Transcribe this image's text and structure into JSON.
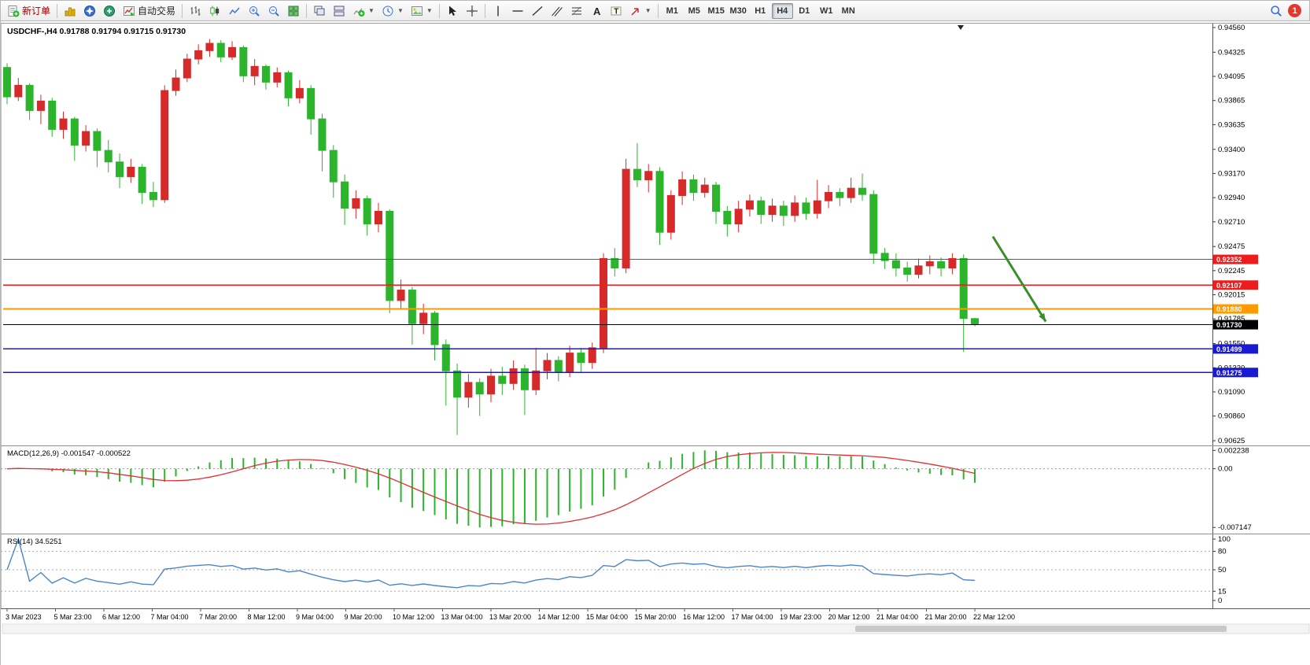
{
  "toolbar": {
    "new_order": "新订单",
    "autotrading": "自动交易",
    "timeframes": [
      "M1",
      "M5",
      "M15",
      "M30",
      "H1",
      "H4",
      "D1",
      "W1",
      "MN"
    ],
    "active_timeframe": "H4",
    "notification_badge": "1",
    "icons": [
      "new-order-icon",
      "market-watch-icon",
      "navigator-icon",
      "terminal-icon",
      "autotrading-icon",
      "bar-chart-icon",
      "candlestick-icon",
      "line-chart-icon",
      "zoom-in-icon",
      "zoom-out-icon",
      "tile-windows-icon",
      "cascade-windows-icon",
      "tile-horizontal-icon",
      "indicators-icon",
      "periods-icon",
      "templates-icon",
      "cursor-icon",
      "crosshair-icon",
      "vertical-line-icon",
      "horizontal-line-icon",
      "trendline-icon",
      "channel-icon",
      "fibonacci-icon",
      "text-icon",
      "label-icon",
      "arrows-icon",
      "search-icon",
      "notification-badge"
    ]
  },
  "chart": {
    "symbol": "USDCHF-,H4",
    "open": "0.91788",
    "high": "0.91794",
    "low": "0.91715",
    "close": "0.91730"
  },
  "chart_data": {
    "type": "candlestick",
    "symbol": "USDCHF-",
    "timeframe": "H4",
    "colors": {
      "up": "#d62a2a",
      "down": "#2cb42c",
      "macd_histogram": "#2cb42c",
      "macd_signal": "#e03030",
      "rsi_line": "#4a86c8",
      "arrow": "#3a8f28"
    },
    "price_axis": [
      "0.94560",
      "0.94325",
      "0.94095",
      "0.93865",
      "0.93635",
      "0.93400",
      "0.93170",
      "0.92940",
      "0.92710",
      "0.92475",
      "0.92245",
      "0.92015",
      "0.91785",
      "0.91550",
      "0.91320",
      "0.91090",
      "0.90860",
      "0.90625"
    ],
    "time_labels": [
      "3 Mar 2023",
      "5 Mar 23:00",
      "6 Mar 12:00",
      "7 Mar 04:00",
      "7 Mar 20:00",
      "8 Mar 12:00",
      "9 Mar 04:00",
      "9 Mar 20:00",
      "10 Mar 12:00",
      "13 Mar 04:00",
      "13 Mar 20:00",
      "14 Mar 12:00",
      "15 Mar 04:00",
      "15 Mar 20:00",
      "16 Mar 12:00",
      "17 Mar 04:00",
      "19 Mar 23:00",
      "20 Mar 12:00",
      "21 Mar 04:00",
      "21 Mar 20:00",
      "22 Mar 12:00"
    ],
    "candles": [
      [
        0.9418,
        0.9422,
        0.9383,
        0.939
      ],
      [
        0.939,
        0.9408,
        0.9386,
        0.9401
      ],
      [
        0.9401,
        0.9403,
        0.9368,
        0.9377
      ],
      [
        0.9377,
        0.9392,
        0.9364,
        0.9386
      ],
      [
        0.9386,
        0.9389,
        0.9352,
        0.9359
      ],
      [
        0.9359,
        0.9376,
        0.935,
        0.9369
      ],
      [
        0.9369,
        0.9371,
        0.9329,
        0.9344
      ],
      [
        0.9344,
        0.9363,
        0.9338,
        0.9357
      ],
      [
        0.9357,
        0.936,
        0.9323,
        0.9339
      ],
      [
        0.9339,
        0.9349,
        0.9318,
        0.9328
      ],
      [
        0.9328,
        0.9336,
        0.9303,
        0.9314
      ],
      [
        0.9314,
        0.9331,
        0.9308,
        0.9323
      ],
      [
        0.9323,
        0.9326,
        0.9288,
        0.9299
      ],
      [
        0.9299,
        0.9309,
        0.9285,
        0.9292
      ],
      [
        0.9292,
        0.9401,
        0.9289,
        0.9396
      ],
      [
        0.9396,
        0.9416,
        0.9391,
        0.9408
      ],
      [
        0.9408,
        0.9431,
        0.9404,
        0.9426
      ],
      [
        0.9426,
        0.944,
        0.9421,
        0.9434
      ],
      [
        0.9434,
        0.9445,
        0.9428,
        0.9441
      ],
      [
        0.9441,
        0.9444,
        0.9423,
        0.9428
      ],
      [
        0.9428,
        0.9443,
        0.9425,
        0.9437
      ],
      [
        0.9437,
        0.9439,
        0.9404,
        0.941
      ],
      [
        0.941,
        0.9426,
        0.9401,
        0.9419
      ],
      [
        0.9419,
        0.9421,
        0.9397,
        0.9404
      ],
      [
        0.9404,
        0.9418,
        0.9399,
        0.9413
      ],
      [
        0.9413,
        0.9415,
        0.9381,
        0.9389
      ],
      [
        0.9389,
        0.9406,
        0.9384,
        0.9398
      ],
      [
        0.9398,
        0.9401,
        0.9354,
        0.9369
      ],
      [
        0.9369,
        0.9374,
        0.9319,
        0.9339
      ],
      [
        0.9339,
        0.9344,
        0.9294,
        0.9309
      ],
      [
        0.9309,
        0.9316,
        0.9268,
        0.9284
      ],
      [
        0.9284,
        0.9301,
        0.9274,
        0.9293
      ],
      [
        0.9293,
        0.9296,
        0.9258,
        0.9269
      ],
      [
        0.9269,
        0.9289,
        0.9261,
        0.9281
      ],
      [
        0.9281,
        0.9283,
        0.9184,
        0.9196
      ],
      [
        0.9196,
        0.9216,
        0.9188,
        0.9206
      ],
      [
        0.9206,
        0.9209,
        0.9154,
        0.9174
      ],
      [
        0.9174,
        0.9193,
        0.9164,
        0.9184
      ],
      [
        0.9184,
        0.9186,
        0.9139,
        0.9154
      ],
      [
        0.9154,
        0.9159,
        0.9096,
        0.9129
      ],
      [
        0.9129,
        0.9136,
        0.9068,
        0.9104
      ],
      [
        0.9104,
        0.9126,
        0.9094,
        0.9118
      ],
      [
        0.9118,
        0.9122,
        0.9086,
        0.9107
      ],
      [
        0.9107,
        0.9131,
        0.9099,
        0.9124
      ],
      [
        0.9124,
        0.9133,
        0.9106,
        0.9117
      ],
      [
        0.9117,
        0.9139,
        0.9111,
        0.9131
      ],
      [
        0.9131,
        0.9135,
        0.9087,
        0.9111
      ],
      [
        0.9111,
        0.9151,
        0.9106,
        0.9129
      ],
      [
        0.9129,
        0.9146,
        0.9121,
        0.9139
      ],
      [
        0.9139,
        0.9143,
        0.9119,
        0.9128
      ],
      [
        0.9128,
        0.9153,
        0.9123,
        0.9146
      ],
      [
        0.9146,
        0.9151,
        0.9128,
        0.9137
      ],
      [
        0.9137,
        0.9156,
        0.9131,
        0.9151
      ],
      [
        0.9151,
        0.9241,
        0.9146,
        0.9236
      ],
      [
        0.9236,
        0.9246,
        0.9219,
        0.9227
      ],
      [
        0.9227,
        0.9331,
        0.9222,
        0.9321
      ],
      [
        0.9321,
        0.9346,
        0.9304,
        0.9311
      ],
      [
        0.9311,
        0.9326,
        0.9299,
        0.9319
      ],
      [
        0.9319,
        0.9323,
        0.9249,
        0.9261
      ],
      [
        0.9261,
        0.9301,
        0.9254,
        0.9296
      ],
      [
        0.9296,
        0.9319,
        0.9287,
        0.9311
      ],
      [
        0.9311,
        0.9316,
        0.9291,
        0.9299
      ],
      [
        0.9299,
        0.9313,
        0.9294,
        0.9306
      ],
      [
        0.9306,
        0.9309,
        0.9269,
        0.9281
      ],
      [
        0.9281,
        0.9286,
        0.9257,
        0.9269
      ],
      [
        0.9269,
        0.9291,
        0.9261,
        0.9283
      ],
      [
        0.9283,
        0.9297,
        0.9276,
        0.9291
      ],
      [
        0.9291,
        0.9295,
        0.9269,
        0.9278
      ],
      [
        0.9278,
        0.9293,
        0.9271,
        0.9286
      ],
      [
        0.9286,
        0.9291,
        0.9267,
        0.9277
      ],
      [
        0.9277,
        0.9296,
        0.9271,
        0.9289
      ],
      [
        0.9289,
        0.9294,
        0.9273,
        0.9279
      ],
      [
        0.9279,
        0.9311,
        0.9274,
        0.9291
      ],
      [
        0.9291,
        0.9306,
        0.9284,
        0.9299
      ],
      [
        0.9299,
        0.9303,
        0.9286,
        0.9294
      ],
      [
        0.9294,
        0.9313,
        0.9289,
        0.9303
      ],
      [
        0.9303,
        0.9317,
        0.9291,
        0.9297
      ],
      [
        0.9297,
        0.9301,
        0.9231,
        0.9241
      ],
      [
        0.9241,
        0.9246,
        0.9226,
        0.9234
      ],
      [
        0.9234,
        0.9241,
        0.9219,
        0.9227
      ],
      [
        0.9227,
        0.9233,
        0.9214,
        0.9221
      ],
      [
        0.9221,
        0.9236,
        0.9217,
        0.9229
      ],
      [
        0.9229,
        0.9239,
        0.9221,
        0.9233
      ],
      [
        0.9233,
        0.9237,
        0.9219,
        0.9227
      ],
      [
        0.9227,
        0.9241,
        0.9221,
        0.9236
      ],
      [
        0.9236,
        0.924,
        0.9147,
        0.9179
      ],
      [
        0.91788,
        0.91794,
        0.91715,
        0.9173
      ]
    ],
    "hlines": [
      {
        "price": 0.92352,
        "color": "#ee1c1c",
        "label": "0.92352",
        "width": 1.2
      },
      {
        "price": 0.92107,
        "color": "#ee1c1c",
        "label": "0.92107",
        "width": 1.2
      },
      {
        "price": 0.9188,
        "color": "#ff9a00",
        "label": "0.91880",
        "width": 2
      },
      {
        "price": 0.9173,
        "color": "#000000",
        "label": "0.91730",
        "width": 1
      },
      {
        "price": 0.91499,
        "color": "#1a1ad2",
        "label": "0.91499",
        "width": 1.5
      },
      {
        "price": 0.91275,
        "color": "#1a1ad2",
        "label": "0.91275",
        "width": 1.5
      }
    ],
    "annotation_arrow": {
      "bar_start": 87.6,
      "price_start": 0.9257,
      "bar_end": 92.3,
      "price_end": 0.9176
    },
    "macd": {
      "label": "MACD(12,26,9)",
      "value_main": "-0.001547",
      "value_signal": "-0.000522",
      "params": [
        12,
        26,
        9
      ],
      "axis_labels": [
        {
          "text": "0.002238",
          "value": 0.002238
        },
        {
          "text": "0.00",
          "value": 0
        },
        {
          "text": "-0.007147",
          "value": -0.007147
        }
      ]
    },
    "rsi": {
      "label": "RSI(14)",
      "value": "34.5251",
      "period": 14,
      "axis_labels": [
        {
          "text": "100",
          "value": 100,
          "dashed": false
        },
        {
          "text": "80",
          "value": 80,
          "dashed": true
        },
        {
          "text": "50",
          "value": 50,
          "dashed": true
        },
        {
          "text": "15",
          "value": 15,
          "dashed": true
        },
        {
          "text": "0",
          "value": 0,
          "dashed": false
        }
      ]
    }
  }
}
